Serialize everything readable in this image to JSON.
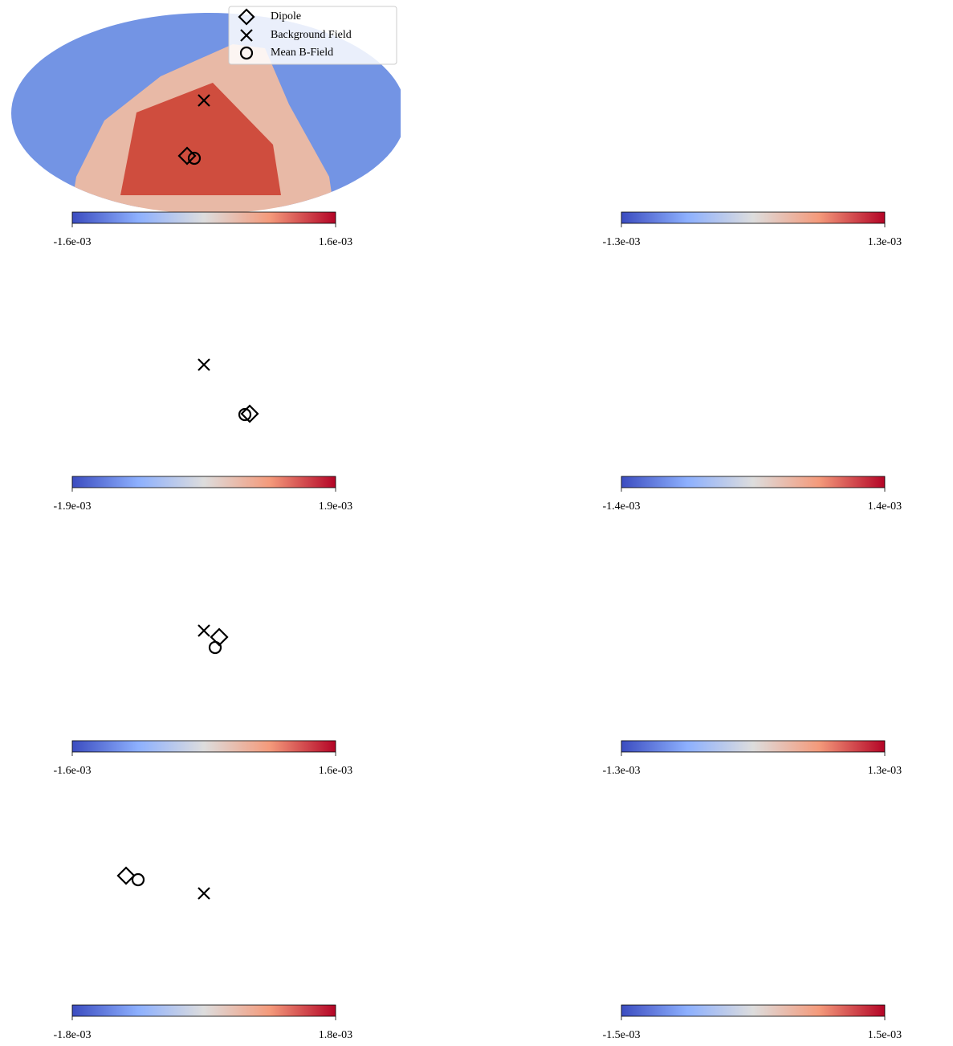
{
  "chart_data": [
    {
      "type": "map",
      "clim": [
        -0.0016,
        0.0016
      ],
      "cticks": [
        {
          "value": -0.0016,
          "label": "-1.6e-03"
        },
        {
          "value": 0.0016,
          "label": "1.6e-03"
        }
      ],
      "legend": [
        "Dipole",
        "Background Field",
        "Mean B-Field"
      ]
    },
    {
      "type": "map",
      "clim": [
        -0.0013,
        0.0013
      ],
      "cticks": [
        {
          "value": -0.0013,
          "label": "-1.3e-03"
        },
        {
          "value": 0.0013,
          "label": "1.3e-03"
        }
      ]
    },
    {
      "type": "map",
      "clim": [
        -0.0019,
        0.0019
      ],
      "cticks": [
        {
          "value": -0.0019,
          "label": "-1.9e-03"
        },
        {
          "value": 0.0019,
          "label": "1.9e-03"
        }
      ]
    },
    {
      "type": "map",
      "clim": [
        -0.0014,
        0.0014
      ],
      "cticks": [
        {
          "value": -0.0014,
          "label": "-1.4e-03"
        },
        {
          "value": 0.0014,
          "label": "1.4e-03"
        }
      ]
    },
    {
      "type": "map",
      "clim": [
        -0.0016,
        0.0016
      ],
      "cticks": [
        {
          "value": -0.0016,
          "label": "-1.6e-03"
        },
        {
          "value": 0.0016,
          "label": "1.6e-03"
        }
      ]
    },
    {
      "type": "map",
      "clim": [
        -0.0013,
        0.0013
      ],
      "cticks": [
        {
          "value": -0.0013,
          "label": "-1.3e-03"
        },
        {
          "value": 0.0013,
          "label": "1.3e-03"
        }
      ]
    },
    {
      "type": "map",
      "clim": [
        -0.0018,
        0.0018
      ],
      "cticks": [
        {
          "value": -0.0018,
          "label": "-1.8e-03"
        },
        {
          "value": 0.0018,
          "label": "1.8e-03"
        }
      ]
    },
    {
      "type": "map",
      "clim": [
        -0.0015,
        0.0015
      ],
      "cticks": [
        {
          "value": -0.0015,
          "label": "-1.5e-03"
        },
        {
          "value": 0.0015,
          "label": "1.5e-03"
        }
      ]
    }
  ]
}
